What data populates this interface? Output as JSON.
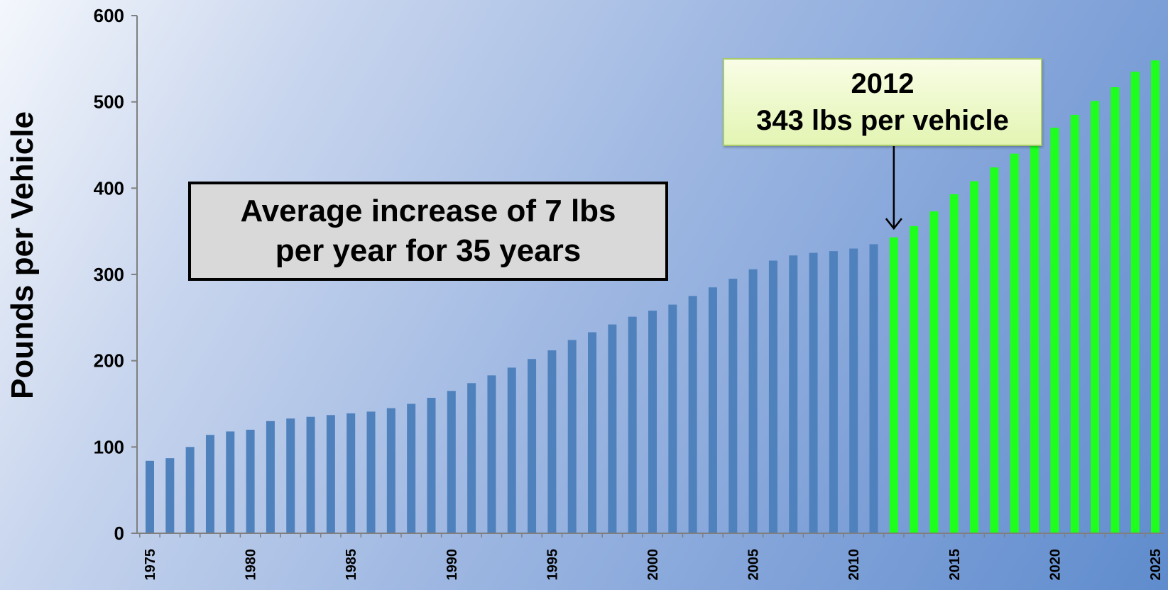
{
  "chart_data": {
    "type": "bar",
    "ylabel": "Pounds per Vehicle",
    "xlabel": "",
    "ylim": [
      0,
      600
    ],
    "yticks": [
      "0",
      "100",
      "200",
      "300",
      "400",
      "500",
      "600"
    ],
    "xticks": [
      "1975",
      "1980",
      "1985",
      "1990",
      "1995",
      "2000",
      "2005",
      "2010",
      "2015",
      "2020",
      "2025"
    ],
    "grid": false,
    "series": [
      {
        "color": "#4f81bd",
        "x": [
          1975,
          1976,
          1977,
          1978,
          1979,
          1980,
          1981,
          1982,
          1983,
          1984,
          1985,
          1986,
          1987,
          1988,
          1989,
          1990,
          1991,
          1992,
          1993,
          1994,
          1995,
          1996,
          1997,
          1998,
          1999,
          2000,
          2001,
          2002,
          2003,
          2004,
          2005,
          2006,
          2007,
          2008,
          2009,
          2010,
          2011
        ],
        "values": [
          84,
          87,
          100,
          114,
          118,
          120,
          130,
          133,
          135,
          137,
          139,
          141,
          145,
          150,
          157,
          165,
          174,
          183,
          192,
          202,
          212,
          224,
          233,
          242,
          251,
          258,
          265,
          275,
          285,
          295,
          306,
          316,
          322,
          325,
          327,
          330,
          335
        ]
      },
      {
        "color": "#1eff1e",
        "x": [
          2012,
          2013,
          2014,
          2015,
          2016,
          2017,
          2018,
          2019,
          2020,
          2021,
          2022,
          2023,
          2024,
          2025
        ],
        "values": [
          343,
          356,
          373,
          393,
          408,
          424,
          440,
          455,
          470,
          485,
          501,
          517,
          535,
          548
        ]
      }
    ],
    "annotations": [
      {
        "id": "avg",
        "lines": [
          "Average increase of 7 lbs",
          "per year for 35 years"
        ]
      },
      {
        "id": "y2012",
        "lines": [
          "2012",
          "343 lbs per vehicle"
        ],
        "arrow_to_x": 2012,
        "arrow_to_value": 350
      }
    ]
  }
}
